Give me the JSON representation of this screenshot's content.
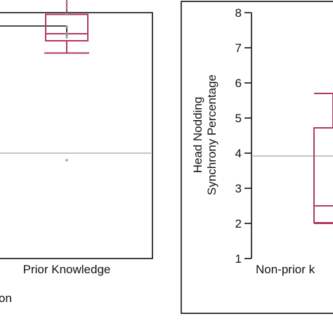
{
  "colors": {
    "box": "#b03a5b",
    "point": "#9a9a9a",
    "refline": "#8a8a8a",
    "frame": "#111111",
    "background": "#ffffff"
  },
  "chart_data": [
    {
      "type": "box",
      "panel": "left",
      "categories": [
        "Prior Knowledge"
      ],
      "xlabel_partial": "on",
      "ylim": [
        1,
        8
      ],
      "reference_line": 4.0,
      "significance_bracket": true,
      "box": {
        "whisker_low": 6.85,
        "q1": 7.2,
        "median": 7.4,
        "q3": 7.95,
        "whisker_high": 8.45
      },
      "points": [
        8.3,
        8.15,
        7.95,
        7.6,
        7.4,
        7.3,
        3.8
      ]
    },
    {
      "type": "box",
      "panel": "right",
      "categories": [
        "Non-prior k"
      ],
      "ylabel": [
        "Head Nodding",
        "Synchrony Percentage"
      ],
      "yticks": [
        "1",
        "2",
        "3",
        "4",
        "5",
        "6",
        "7",
        "8"
      ],
      "ylim": [
        1,
        8
      ],
      "reference_line": 3.92,
      "box": {
        "whisker_low": 2.0,
        "q1": 2.02,
        "median": 2.5,
        "q3": 4.72,
        "whisker_high": 5.7
      }
    }
  ]
}
